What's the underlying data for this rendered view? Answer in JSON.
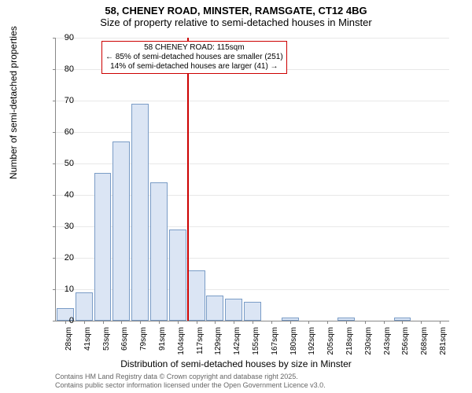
{
  "title": "58, CHENEY ROAD, MINSTER, RAMSGATE, CT12 4BG",
  "subtitle": "Size of property relative to semi-detached houses in Minster",
  "ylabel": "Number of semi-detached properties",
  "xlabel": "Distribution of semi-detached houses by size in Minster",
  "footer_line1": "Contains HM Land Registry data © Crown copyright and database right 2025.",
  "footer_line2": "Contains public sector information licensed under the Open Government Licence v3.0.",
  "chart": {
    "type": "histogram",
    "ylim": [
      0,
      90
    ],
    "ytick_step": 10,
    "bar_fill": "#dbe5f4",
    "bar_stroke": "#7a9cc6",
    "grid_color": "#e8e8e8",
    "background_color": "#ffffff",
    "categories": [
      "28sqm",
      "41sqm",
      "53sqm",
      "66sqm",
      "79sqm",
      "91sqm",
      "104sqm",
      "117sqm",
      "129sqm",
      "142sqm",
      "155sqm",
      "167sqm",
      "180sqm",
      "192sqm",
      "205sqm",
      "218sqm",
      "230sqm",
      "243sqm",
      "256sqm",
      "268sqm",
      "281sqm"
    ],
    "values": [
      4,
      9,
      47,
      57,
      69,
      44,
      29,
      16,
      8,
      7,
      6,
      0,
      1,
      0,
      0,
      1,
      0,
      0,
      1,
      0,
      0
    ],
    "reference_line": {
      "category_index": 7,
      "color": "#cc0000",
      "width": 2
    },
    "annotation": {
      "line1": "58 CHENEY ROAD: 115sqm",
      "line2": "← 85% of semi-detached houses are smaller (251)",
      "line3": "14% of semi-detached houses are larger (41) →",
      "border_color": "#cc0000",
      "background": "#ffffff",
      "fontsize": 10
    }
  }
}
